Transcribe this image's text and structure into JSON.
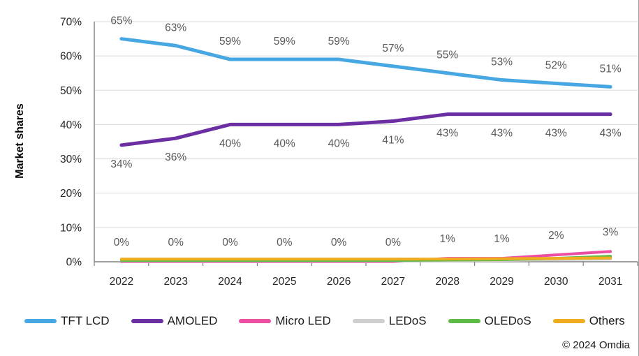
{
  "copyright": "© 2024 Omdia",
  "chart_data": {
    "type": "line",
    "title": "",
    "xlabel": "",
    "ylabel": "Market shares",
    "ylim": [
      0,
      70
    ],
    "y_tick_step": 10,
    "y_tick_labels": [
      "0%",
      "10%",
      "20%",
      "30%",
      "40%",
      "50%",
      "60%",
      "70%"
    ],
    "grid": true,
    "legend_position": "bottom",
    "grid_color": "#D9D9D9",
    "axis_color": "#7F7F7F",
    "data_label_color": "#595959",
    "tick_label_color": "#262626",
    "categories": [
      "2022",
      "2023",
      "2024",
      "2025",
      "2026",
      "2027",
      "2028",
      "2029",
      "2030",
      "2031"
    ],
    "series": [
      {
        "name": "TFT LCD",
        "color": "#47A7E2",
        "line_width": 5,
        "values": [
          65,
          63,
          59,
          59,
          59,
          57,
          55,
          53,
          52,
          51
        ],
        "labels": [
          "65%",
          "63%",
          "59%",
          "59%",
          "59%",
          "57%",
          "55%",
          "53%",
          "52%",
          "51%"
        ],
        "label_position": "above"
      },
      {
        "name": "AMOLED",
        "color": "#6B2FA3",
        "line_width": 5,
        "values": [
          34,
          36,
          40,
          40,
          40,
          41,
          43,
          43,
          43,
          43
        ],
        "labels": [
          "34%",
          "36%",
          "40%",
          "40%",
          "40%",
          "41%",
          "43%",
          "43%",
          "43%",
          "43%"
        ],
        "label_position": "below"
      },
      {
        "name": "Micro LED",
        "color": "#EC4FA2",
        "line_width": 4,
        "values": [
          0,
          0,
          0,
          0,
          0,
          0,
          1,
          1,
          2,
          3
        ],
        "labels": [
          "0%",
          "0%",
          "0%",
          "0%",
          "0%",
          "0%",
          "1%",
          "1%",
          "2%",
          "3%"
        ],
        "label_position": "above"
      },
      {
        "name": "LEDoS",
        "color": "#CFCFCF",
        "line_width": 4,
        "values": [
          0.2,
          0.2,
          0.2,
          0.2,
          0.2,
          0.2,
          0.3,
          0.4,
          0.6,
          0.8
        ]
      },
      {
        "name": "OLEDoS",
        "color": "#5DBB46",
        "line_width": 4,
        "values": [
          0.4,
          0.4,
          0.4,
          0.4,
          0.4,
          0.4,
          0.5,
          0.6,
          1.0,
          1.6
        ]
      },
      {
        "name": "Others",
        "color": "#EFAD1E",
        "line_width": 4,
        "values": [
          0.8,
          0.8,
          0.8,
          0.8,
          0.8,
          0.8,
          0.8,
          0.9,
          1.0,
          1.1
        ]
      }
    ]
  }
}
